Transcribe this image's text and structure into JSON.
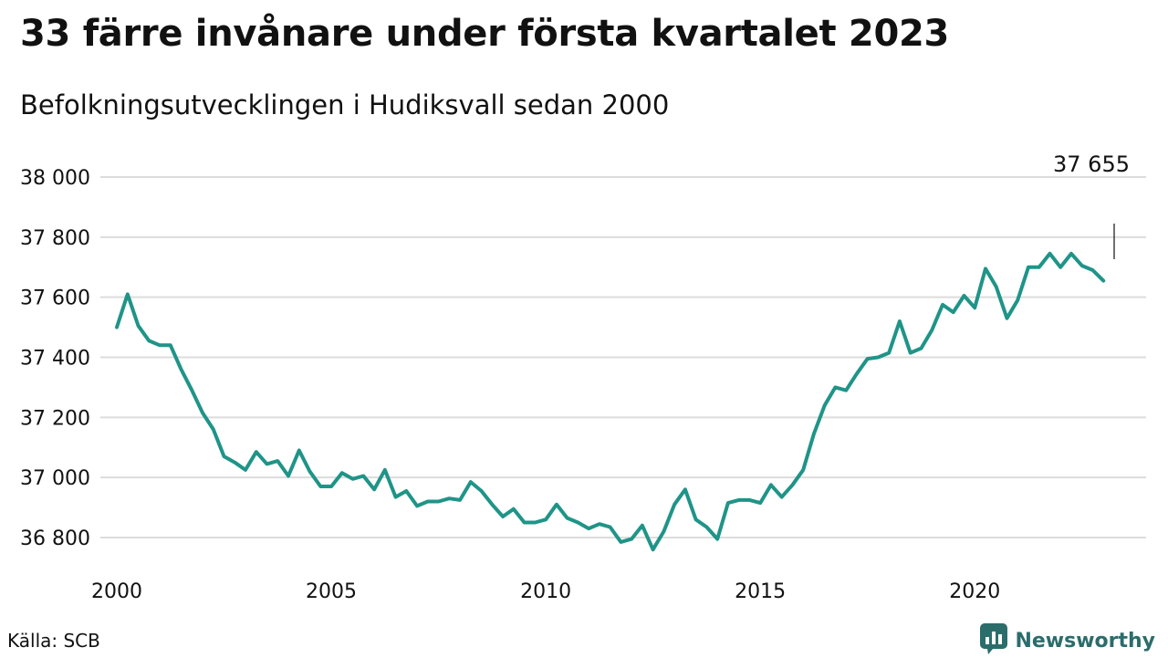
{
  "header": {
    "title": "33 färre invånare under första kvartalet 2023",
    "subtitle": "Befolkningsutvecklingen i Hudiksvall sedan 2000"
  },
  "footer": {
    "source": "Källa: SCB",
    "brand": "Newsworthy",
    "brand_icon": "bar-chart-logo-icon"
  },
  "colors": {
    "line": "#1f9488",
    "brand": "#2b6d6b"
  },
  "chart_data": {
    "type": "line",
    "x_tick_labels": [
      "2000",
      "2005",
      "2010",
      "2015",
      "2020"
    ],
    "x_ticks": [
      2000,
      2005,
      2010,
      2015,
      2020
    ],
    "y_tick_labels": [
      "36 800",
      "37 000",
      "37 200",
      "37 400",
      "37 600",
      "37 800",
      "38 000"
    ],
    "y_ticks": [
      36800,
      37000,
      37200,
      37400,
      37600,
      37800,
      38000
    ],
    "xlim": [
      2000,
      2023.25
    ],
    "ylim": [
      36740,
      38000
    ],
    "grid": true,
    "last_value_label": "37 655",
    "series": [
      {
        "x": [
          2000.0,
          2000.25,
          2000.5,
          2000.75,
          2001.0,
          2001.25,
          2001.5,
          2001.75,
          2002.0,
          2002.25,
          2002.5,
          2002.75,
          2003.0,
          2003.25,
          2003.5,
          2003.75,
          2004.0,
          2004.25,
          2004.5,
          2004.75,
          2005.0,
          2005.25,
          2005.5,
          2005.75,
          2006.0,
          2006.25,
          2006.5,
          2006.75,
          2007.0,
          2007.25,
          2007.5,
          2007.75,
          2008.0,
          2008.25,
          2008.5,
          2008.75,
          2009.0,
          2009.25,
          2009.5,
          2009.75,
          2010.0,
          2010.25,
          2010.5,
          2010.75,
          2011.0,
          2011.25,
          2011.5,
          2011.75,
          2012.0,
          2012.25,
          2012.5,
          2012.75,
          2013.0,
          2013.25,
          2013.5,
          2013.75,
          2014.0,
          2014.25,
          2014.5,
          2014.75,
          2015.0,
          2015.25,
          2015.5,
          2015.75,
          2016.0,
          2016.25,
          2016.5,
          2016.75,
          2017.0,
          2017.25,
          2017.5,
          2017.75,
          2018.0,
          2018.25,
          2018.5,
          2018.75,
          2019.0,
          2019.25,
          2019.5,
          2019.75,
          2020.0,
          2020.25,
          2020.5,
          2020.75,
          2021.0,
          2021.25,
          2021.5,
          2021.75,
          2022.0,
          2022.25,
          2022.5,
          2022.75,
          2023.0
        ],
        "y": [
          37500,
          37610,
          37505,
          37455,
          37440,
          37440,
          37360,
          37290,
          37215,
          37160,
          37070,
          37050,
          37025,
          37085,
          37045,
          37055,
          37005,
          37090,
          37020,
          36970,
          36970,
          37015,
          36995,
          37005,
          36960,
          37025,
          36935,
          36955,
          36905,
          36920,
          36920,
          36930,
          36925,
          36985,
          36955,
          36910,
          36870,
          36895,
          36850,
          36850,
          36860,
          36910,
          36865,
          36850,
          36830,
          36845,
          36835,
          36785,
          36795,
          36840,
          36760,
          36820,
          36910,
          36960,
          36860,
          36835,
          36795,
          36915,
          36925,
          36925,
          36915,
          36975,
          36935,
          36975,
          37025,
          37145,
          37240,
          37300,
          37290,
          37345,
          37395,
          37400,
          37415,
          37520,
          37415,
          37430,
          37490,
          37575,
          37550,
          37605,
          37565,
          37695,
          37635,
          37530,
          37590,
          37700,
          37700,
          37745,
          37700,
          37745,
          37705,
          37690,
          37655
        ]
      }
    ]
  }
}
